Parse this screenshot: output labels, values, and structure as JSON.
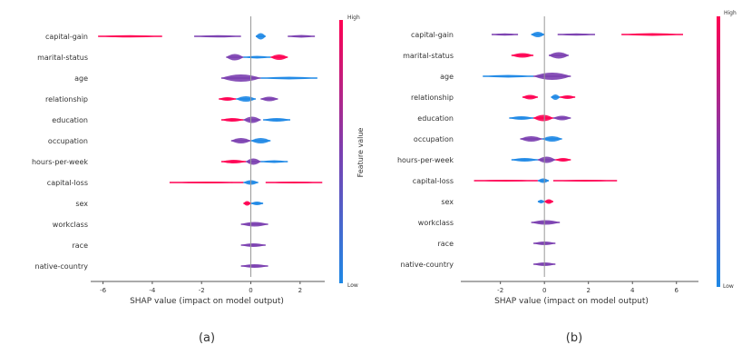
{
  "colors": {
    "low": "#1e88e5",
    "mid": "#7b3fb0",
    "high": "#ff0052",
    "axis": "#555555",
    "zero": "#999999"
  },
  "chart_data": [
    {
      "type": "scatter",
      "panel_label": "(a)",
      "xlabel": "SHAP value (impact on model output)",
      "colorbar": {
        "label": "Feature value",
        "high_label": "High",
        "low_label": "Low"
      },
      "xlim": [
        -6.5,
        3.0
      ],
      "xticks": [
        -6,
        -4,
        -2,
        0,
        2
      ],
      "features": [
        "capital-gain",
        "marital-status",
        "age",
        "relationship",
        "education",
        "occupation",
        "hours-per-week",
        "capital-loss",
        "sex",
        "workclass",
        "race",
        "native-country"
      ],
      "rows": [
        {
          "feature": "capital-gain",
          "segments": [
            [
              -6.2,
              -3.6,
              "high",
              2.5
            ],
            [
              -2.3,
              -0.4,
              "mid",
              2.5
            ],
            [
              0.2,
              0.6,
              "low",
              7
            ],
            [
              1.5,
              2.6,
              "mid",
              3
            ]
          ]
        },
        {
          "feature": "marital-status",
          "segments": [
            [
              -1.0,
              -0.3,
              "mid",
              7
            ],
            [
              0.8,
              1.5,
              "high",
              6
            ],
            [
              -0.3,
              0.8,
              "low",
              3
            ]
          ]
        },
        {
          "feature": "age",
          "segments": [
            [
              -1.2,
              0.4,
              "mid",
              8
            ],
            [
              0.4,
              2.7,
              "low",
              3
            ]
          ]
        },
        {
          "feature": "relationship",
          "segments": [
            [
              -1.3,
              -0.6,
              "high",
              4
            ],
            [
              -0.6,
              0.2,
              "low",
              6
            ],
            [
              0.4,
              1.1,
              "mid",
              5
            ]
          ]
        },
        {
          "feature": "education",
          "segments": [
            [
              -1.2,
              -0.3,
              "high",
              4
            ],
            [
              -0.3,
              0.4,
              "mid",
              7
            ],
            [
              0.5,
              1.6,
              "low",
              4
            ]
          ]
        },
        {
          "feature": "occupation",
          "segments": [
            [
              -0.8,
              0.0,
              "mid",
              6
            ],
            [
              0.0,
              0.8,
              "low",
              6
            ]
          ]
        },
        {
          "feature": "hours-per-week",
          "segments": [
            [
              -1.2,
              -0.2,
              "high",
              4
            ],
            [
              -0.2,
              0.4,
              "mid",
              7
            ],
            [
              0.4,
              1.5,
              "low",
              3
            ]
          ]
        },
        {
          "feature": "capital-loss",
          "segments": [
            [
              -3.3,
              -0.3,
              "high",
              2
            ],
            [
              -0.3,
              0.3,
              "low",
              5
            ],
            [
              0.6,
              2.9,
              "high",
              2
            ]
          ]
        },
        {
          "feature": "sex",
          "segments": [
            [
              -0.3,
              0.0,
              "high",
              5
            ],
            [
              0.0,
              0.5,
              "low",
              4
            ]
          ]
        },
        {
          "feature": "workclass",
          "segments": [
            [
              -0.4,
              0.7,
              "mid",
              5
            ]
          ]
        },
        {
          "feature": "race",
          "segments": [
            [
              -0.4,
              0.6,
              "mid",
              4
            ]
          ]
        },
        {
          "feature": "native-country",
          "segments": [
            [
              -0.4,
              0.7,
              "mid",
              4
            ]
          ]
        }
      ]
    },
    {
      "type": "scatter",
      "panel_label": "(b)",
      "xlabel": "SHAP value (impact on model output)",
      "colorbar": {
        "label": "",
        "high_label": "High",
        "low_label": "Low"
      },
      "xlim": [
        -3.8,
        7.0
      ],
      "xticks": [
        -2,
        0,
        2,
        4,
        6
      ],
      "features": [
        "capital-gain",
        "marital-status",
        "age",
        "relationship",
        "education",
        "occupation",
        "hours-per-week",
        "capital-loss",
        "sex",
        "workclass",
        "race",
        "native-country"
      ],
      "rows": [
        {
          "feature": "capital-gain",
          "segments": [
            [
              -2.4,
              -1.2,
              "mid",
              2.5
            ],
            [
              -0.6,
              0.0,
              "low",
              6
            ],
            [
              0.6,
              2.3,
              "mid",
              2.5
            ],
            [
              3.5,
              6.3,
              "high",
              3
            ]
          ]
        },
        {
          "feature": "marital-status",
          "segments": [
            [
              -1.5,
              -0.5,
              "high",
              5
            ],
            [
              0.2,
              1.1,
              "mid",
              7
            ]
          ]
        },
        {
          "feature": "age",
          "segments": [
            [
              -2.8,
              -0.5,
              "low",
              3
            ],
            [
              -0.5,
              1.2,
              "mid",
              8
            ]
          ]
        },
        {
          "feature": "relationship",
          "segments": [
            [
              -1.0,
              -0.3,
              "high",
              5
            ],
            [
              0.3,
              0.7,
              "low",
              6
            ],
            [
              0.7,
              1.4,
              "high",
              4
            ]
          ]
        },
        {
          "feature": "education",
          "segments": [
            [
              -1.6,
              -0.5,
              "low",
              4
            ],
            [
              -0.5,
              0.4,
              "high",
              7
            ],
            [
              0.4,
              1.2,
              "mid",
              5
            ]
          ]
        },
        {
          "feature": "occupation",
          "segments": [
            [
              -1.1,
              -0.1,
              "mid",
              6
            ],
            [
              -0.1,
              0.8,
              "low",
              6
            ]
          ]
        },
        {
          "feature": "hours-per-week",
          "segments": [
            [
              -1.5,
              -0.3,
              "low",
              4
            ],
            [
              -0.3,
              0.5,
              "mid",
              7
            ],
            [
              0.5,
              1.2,
              "high",
              4
            ]
          ]
        },
        {
          "feature": "capital-loss",
          "segments": [
            [
              -3.2,
              -0.3,
              "high",
              2
            ],
            [
              -0.3,
              0.2,
              "low",
              5
            ],
            [
              0.4,
              3.3,
              "high",
              2
            ]
          ]
        },
        {
          "feature": "sex",
          "segments": [
            [
              -0.3,
              0.0,
              "low",
              4
            ],
            [
              0.0,
              0.4,
              "high",
              5
            ]
          ]
        },
        {
          "feature": "workclass",
          "segments": [
            [
              -0.6,
              0.7,
              "mid",
              5
            ]
          ]
        },
        {
          "feature": "race",
          "segments": [
            [
              -0.5,
              0.5,
              "mid",
              4
            ]
          ]
        },
        {
          "feature": "native-country",
          "segments": [
            [
              -0.5,
              0.5,
              "mid",
              4
            ]
          ]
        }
      ]
    }
  ]
}
